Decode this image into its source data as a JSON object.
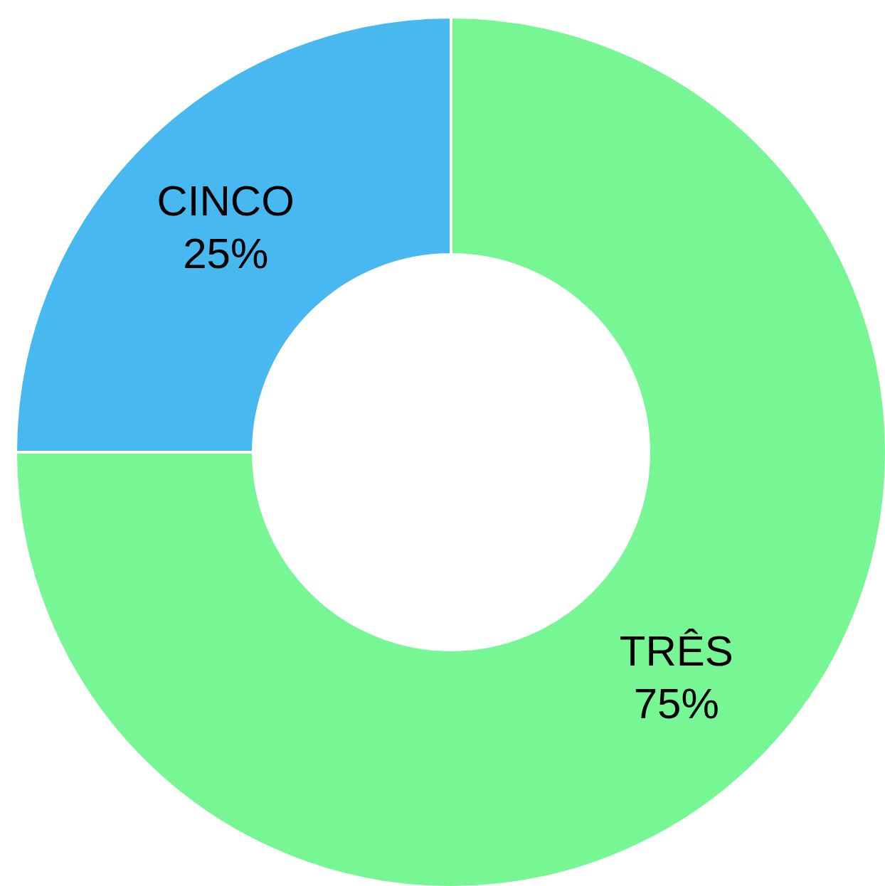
{
  "chart_data": {
    "type": "donut",
    "categories": [
      "TRÊS",
      "CINCO"
    ],
    "values": [
      75,
      25
    ],
    "colors": [
      "#76f794",
      "#48b8f0"
    ],
    "value_labels": [
      "75%",
      "25%"
    ]
  }
}
